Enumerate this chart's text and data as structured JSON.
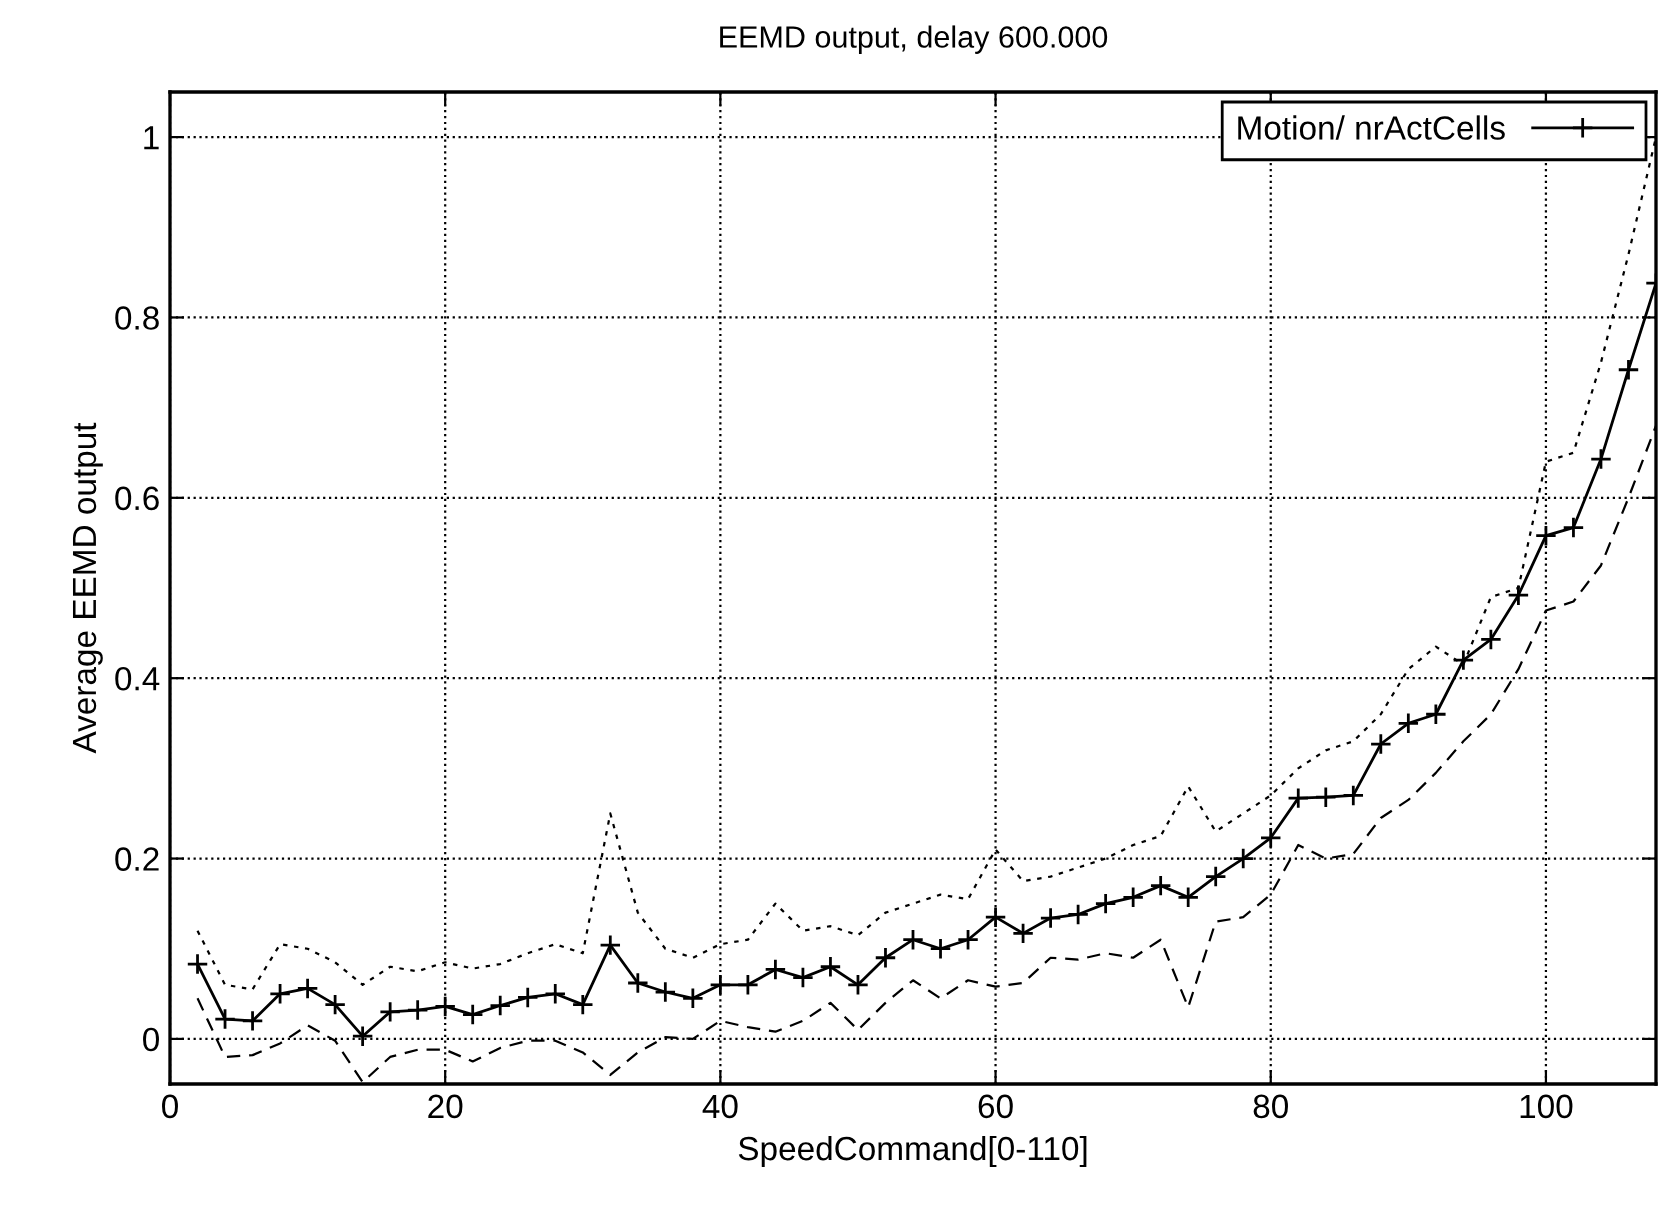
{
  "chart_data": {
    "type": "line",
    "title": "EEMD output, delay 600.000",
    "xlabel": "SpeedCommand[0-110]",
    "ylabel": "Average EEMD output",
    "x": [
      2,
      4,
      6,
      8,
      10,
      12,
      14,
      16,
      18,
      20,
      22,
      24,
      26,
      28,
      30,
      32,
      34,
      36,
      38,
      40,
      42,
      44,
      46,
      48,
      50,
      52,
      54,
      56,
      58,
      60,
      62,
      64,
      66,
      68,
      70,
      72,
      74,
      76,
      78,
      80,
      82,
      84,
      86,
      88,
      90,
      92,
      94,
      96,
      98,
      100,
      102,
      104,
      106,
      108
    ],
    "series": [
      {
        "name": "Motion/ nrActCells",
        "color": "#000000",
        "values": [
          0.083,
          0.022,
          0.02,
          0.05,
          0.056,
          0.038,
          0.003,
          0.03,
          0.032,
          0.036,
          0.027,
          0.037,
          0.046,
          0.05,
          0.038,
          0.104,
          0.062,
          0.052,
          0.045,
          0.06,
          0.06,
          0.077,
          0.068,
          0.08,
          0.06,
          0.09,
          0.11,
          0.1,
          0.11,
          0.135,
          0.117,
          0.134,
          0.138,
          0.15,
          0.157,
          0.17,
          0.157,
          0.18,
          0.2,
          0.223,
          0.267,
          0.268,
          0.27,
          0.327,
          0.35,
          0.36,
          0.42,
          0.443,
          0.492,
          0.558,
          0.567,
          0.643,
          0.742,
          0.838
        ]
      },
      {
        "color": "#000000",
        "marker": "none",
        "line_style": "dotted",
        "values": [
          0.12,
          0.06,
          0.055,
          0.105,
          0.1,
          0.085,
          0.06,
          0.08,
          0.075,
          0.085,
          0.078,
          0.083,
          0.095,
          0.105,
          0.095,
          0.25,
          0.14,
          0.1,
          0.09,
          0.105,
          0.11,
          0.15,
          0.12,
          0.125,
          0.115,
          0.14,
          0.15,
          0.16,
          0.155,
          0.21,
          0.175,
          0.18,
          0.19,
          0.2,
          0.215,
          0.225,
          0.28,
          0.23,
          0.25,
          0.27,
          0.3,
          0.32,
          0.33,
          0.36,
          0.41,
          0.435,
          0.415,
          0.49,
          0.5,
          0.64,
          0.65,
          0.75,
          0.87,
          1.0
        ]
      },
      {
        "color": "#000000",
        "marker": "none",
        "line_style": "dashed",
        "values": [
          0.045,
          -0.02,
          -0.018,
          -0.005,
          0.015,
          -0.002,
          -0.048,
          -0.02,
          -0.012,
          -0.012,
          -0.025,
          -0.01,
          -0.002,
          -0.002,
          -0.015,
          -0.04,
          -0.015,
          0.002,
          0.0,
          0.02,
          0.013,
          0.008,
          0.02,
          0.04,
          0.01,
          0.04,
          0.065,
          0.045,
          0.065,
          0.058,
          0.062,
          0.09,
          0.088,
          0.095,
          0.09,
          0.11,
          0.035,
          0.13,
          0.135,
          0.16,
          0.215,
          0.2,
          0.205,
          0.245,
          0.265,
          0.295,
          0.33,
          0.36,
          0.41,
          0.475,
          0.485,
          0.525,
          0.6,
          0.68
        ]
      }
    ],
    "xlim": [
      0,
      108
    ],
    "ylim": [
      -0.05,
      1.05
    ],
    "xticks": [
      0,
      20,
      40,
      60,
      80,
      100
    ],
    "yticks": [
      0,
      0.2,
      0.4,
      0.6,
      0.8,
      1
    ],
    "grid": true,
    "legend": "top right",
    "marker": "cross",
    "line_style": "solid"
  }
}
